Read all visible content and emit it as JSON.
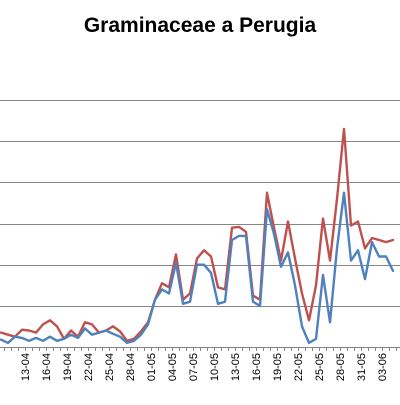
{
  "chart_data": {
    "type": "line",
    "title": "Graminaceae a Perugia",
    "xlabel": "",
    "ylabel": "",
    "grid": true,
    "ylim": [
      0,
      7
    ],
    "y_tick_step": 1,
    "x_start": "2013-04-10",
    "tick_labels": [
      "13-04",
      "16-04",
      "19-04",
      "22-04",
      "25-04",
      "28-04",
      "01-05",
      "04-05",
      "07-05",
      "10-05",
      "13-05",
      "16-05",
      "19-05",
      "22-05",
      "25-05",
      "28-05",
      "31-05",
      "03-06"
    ],
    "tick_every": 3,
    "tick_first_index": 3,
    "series": [
      {
        "color": "#c0504d",
        "values": [
          0.35,
          0.3,
          0.25,
          0.42,
          0.4,
          0.35,
          0.55,
          0.65,
          0.5,
          0.2,
          0.4,
          0.25,
          0.6,
          0.55,
          0.35,
          0.4,
          0.5,
          0.38,
          0.15,
          0.2,
          0.38,
          0.6,
          1.15,
          1.55,
          1.45,
          2.25,
          1.15,
          1.3,
          2.15,
          2.35,
          2.2,
          1.45,
          1.4,
          2.9,
          2.92,
          2.8,
          1.25,
          1.15,
          3.75,
          2.9,
          2.1,
          3.05,
          2.15,
          1.3,
          0.65,
          1.5,
          3.12,
          2.1,
          3.6,
          5.3,
          2.95,
          3.05,
          2.4,
          2.65,
          2.6,
          2.55,
          2.6
        ]
      },
      {
        "color": "#4f81bd",
        "values": [
          0.18,
          0.1,
          0.25,
          0.22,
          0.15,
          0.22,
          0.15,
          0.25,
          0.15,
          0.2,
          0.3,
          0.22,
          0.45,
          0.3,
          0.35,
          0.4,
          0.32,
          0.25,
          0.1,
          0.15,
          0.3,
          0.55,
          1.15,
          1.4,
          1.3,
          2.05,
          1.05,
          1.1,
          2.0,
          2.0,
          1.8,
          1.05,
          1.1,
          2.6,
          2.7,
          2.7,
          1.1,
          1.0,
          3.35,
          2.75,
          1.95,
          2.3,
          1.5,
          0.5,
          0.1,
          0.2,
          1.75,
          0.6,
          2.4,
          3.75,
          2.1,
          2.35,
          1.65,
          2.55,
          2.2,
          2.2,
          1.85
        ]
      }
    ]
  }
}
